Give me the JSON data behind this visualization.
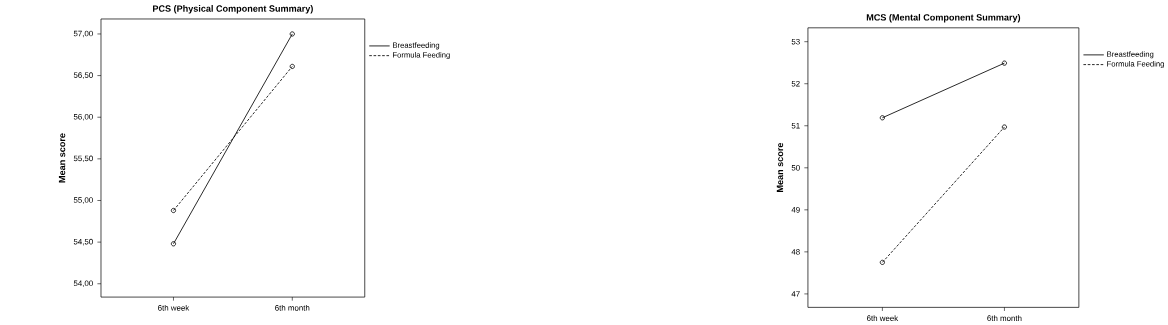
{
  "chart_data": [
    {
      "type": "line",
      "title": "PCS (Physical Component Summary)",
      "ylabel": "Mean score",
      "categories": [
        "6th week",
        "6th month"
      ],
      "series": [
        {
          "name": "Breastfeeding",
          "color": "#000000",
          "values": [
            54.48,
            57.0
          ],
          "line_style": "solid"
        },
        {
          "name": "Formula Feeding",
          "color": "#000000",
          "values": [
            54.88,
            56.61
          ],
          "line_style": "dashed"
        }
      ],
      "ylim": [
        53.84,
        57.18
      ],
      "yticks": [
        {
          "value": 54,
          "label": "54,00"
        },
        {
          "value": 54.5,
          "label": "54,50"
        },
        {
          "value": 55,
          "label": "55,00"
        },
        {
          "value": 55.5,
          "label": "55,50"
        },
        {
          "value": 56,
          "label": "56,00"
        },
        {
          "value": 56.5,
          "label": "56,50"
        },
        {
          "value": 57,
          "label": "57,00"
        }
      ],
      "legend": "top right",
      "marker": "circle"
    },
    {
      "type": "line",
      "title": "MCS (Mental Component Summary)",
      "ylabel": "Mean score",
      "categories": [
        "6th week",
        "6th month"
      ],
      "series": [
        {
          "name": "Breastfeeding",
          "color": "#000000",
          "values": [
            51.19,
            52.49
          ],
          "line_style": "solid"
        },
        {
          "name": "Formula Feeding",
          "color": "#000000",
          "values": [
            47.75,
            50.97
          ],
          "line_style": "dashed"
        }
      ],
      "ylim": [
        46.68,
        53.33
      ],
      "yticks": [
        47,
        48,
        49,
        50,
        51,
        52,
        53
      ],
      "legend": "top right",
      "marker": "circle"
    }
  ]
}
